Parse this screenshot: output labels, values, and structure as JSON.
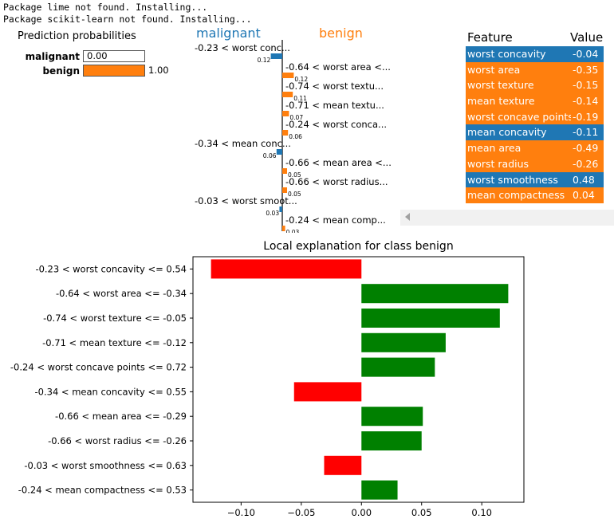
{
  "console": {
    "lines": [
      "Package lime not found. Installing...",
      "Package scikit-learn not found. Installing..."
    ]
  },
  "prediction": {
    "title": "Prediction probabilities",
    "classes": [
      {
        "label": "malignant",
        "value": 0.0,
        "display": "0.00",
        "color": "#1f77b4"
      },
      {
        "label": "benign",
        "value": 1.0,
        "display": "1.00",
        "color": "#ff7f0e"
      }
    ]
  },
  "lime_panel": {
    "class_left": "malignant",
    "class_right": "benign",
    "color_left": "#1f77b4",
    "color_right": "#ff7f0e",
    "bars": [
      {
        "label": "-0.23 < worst conc...",
        "weight": 0.12,
        "display": "0.12",
        "side": "left"
      },
      {
        "label": "-0.64 < worst area <...",
        "weight": 0.12,
        "display": "0.12",
        "side": "right"
      },
      {
        "label": "-0.74 < worst textu...",
        "weight": 0.11,
        "display": "0.11",
        "side": "right"
      },
      {
        "label": "-0.71 < mean textu...",
        "weight": 0.07,
        "display": "0.07",
        "side": "right"
      },
      {
        "label": "-0.24 < worst conca...",
        "weight": 0.06,
        "display": "0.06",
        "side": "right"
      },
      {
        "label": "-0.34 < mean conc...",
        "weight": 0.06,
        "display": "0.06",
        "side": "left"
      },
      {
        "label": "-0.66 < mean area <...",
        "weight": 0.05,
        "display": "0.05",
        "side": "right"
      },
      {
        "label": "-0.66 < worst radius...",
        "weight": 0.05,
        "display": "0.05",
        "side": "right"
      },
      {
        "label": "-0.03 < worst smoot...",
        "weight": 0.03,
        "display": "0.03",
        "side": "left"
      },
      {
        "label": "-0.24 < mean comp...",
        "weight": 0.03,
        "display": "0.03",
        "side": "right"
      }
    ]
  },
  "feature_table": {
    "header_feature": "Feature",
    "header_value": "Value",
    "rows": [
      {
        "feature": "worst concavity",
        "value": "-0.04",
        "color": "#1f77b4"
      },
      {
        "feature": "worst area",
        "value": "-0.35",
        "color": "#ff7f0e"
      },
      {
        "feature": "worst texture",
        "value": "-0.15",
        "color": "#ff7f0e"
      },
      {
        "feature": "mean texture",
        "value": "-0.14",
        "color": "#ff7f0e"
      },
      {
        "feature": "worst concave points",
        "value": "-0.19",
        "color": "#ff7f0e"
      },
      {
        "feature": "mean concavity",
        "value": "-0.11",
        "color": "#1f77b4"
      },
      {
        "feature": "mean area",
        "value": "-0.49",
        "color": "#ff7f0e"
      },
      {
        "feature": "worst radius",
        "value": "-0.26",
        "color": "#ff7f0e"
      },
      {
        "feature": "worst smoothness",
        "value": "0.48",
        "color": "#1f77b4"
      },
      {
        "feature": "mean compactness",
        "value": "0.04",
        "color": "#ff7f0e"
      }
    ]
  },
  "chart_data": {
    "type": "bar",
    "orientation": "horizontal",
    "title": "Local explanation for class benign",
    "categories": [
      "-0.23 < worst concavity <= 0.54",
      "-0.64 < worst area <= -0.34",
      "-0.74 < worst texture <= -0.05",
      "-0.71 < mean texture <= -0.12",
      "-0.24 < worst concave points <= 0.72",
      "-0.34 < mean concavity <= 0.55",
      "-0.66 < mean area <= -0.29",
      "-0.66 < worst radius <= -0.26",
      "-0.03 < worst smoothness <= 0.63",
      "-0.24 < mean compactness <= 0.53"
    ],
    "values": [
      -0.125,
      0.122,
      0.115,
      0.07,
      0.061,
      -0.056,
      0.051,
      0.05,
      -0.031,
      0.03
    ],
    "xlim": [
      -0.14,
      0.135
    ],
    "xticks": [
      -0.1,
      -0.05,
      0.0,
      0.05,
      0.1
    ],
    "xtick_labels": [
      "−0.10",
      "−0.05",
      "0.00",
      "0.05",
      "0.10"
    ],
    "positive_color": "#008000",
    "negative_color": "#ff0000",
    "grid": false
  }
}
